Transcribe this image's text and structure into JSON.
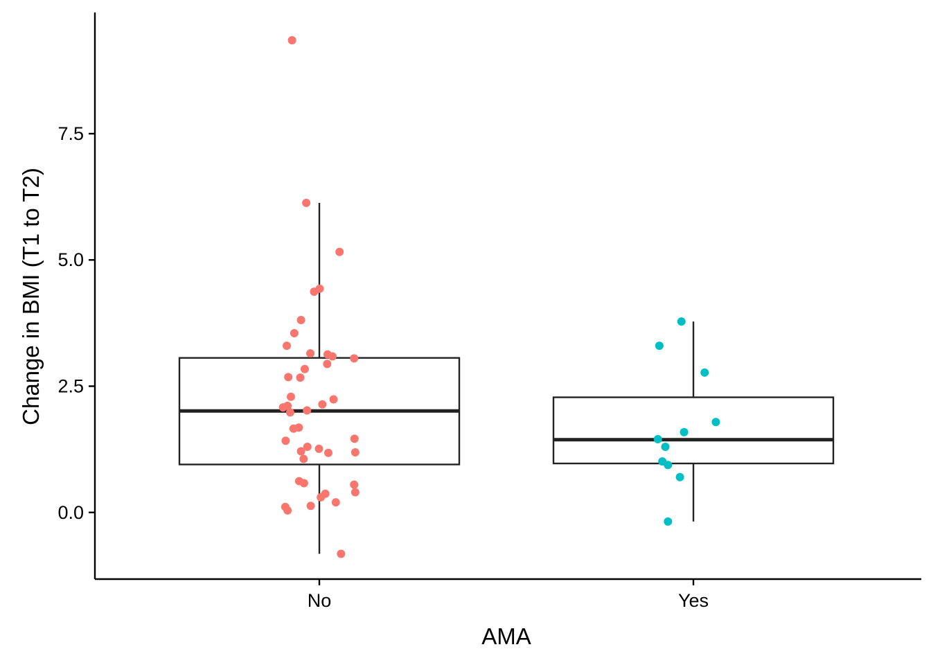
{
  "chart_data": {
    "type": "box",
    "xlabel": "AMA",
    "ylabel": "Change in BMI (T1 to T2)",
    "categories": [
      "No",
      "Yes"
    ],
    "ylim": [
      -1.32,
      9.9
    ],
    "yticks": [
      0.0,
      2.5,
      5.0,
      7.5
    ],
    "ytick_labels": [
      "0.0",
      "2.5",
      "5.0",
      "7.5"
    ],
    "grid": false,
    "legend": "none",
    "colors": {
      "No": "#f8766d",
      "Yes": "#00bfc4",
      "box": "#222222",
      "axis": "#000000"
    },
    "boxes": [
      {
        "category": "No",
        "q1": 0.95,
        "median": 2.01,
        "q3": 3.06,
        "whisker_low": -0.82,
        "whisker_high": 6.13
      },
      {
        "category": "Yes",
        "q1": 0.97,
        "median": 1.44,
        "q3": 2.28,
        "whisker_low": -0.18,
        "whisker_high": 3.78
      }
    ],
    "series": [
      {
        "name": "No",
        "points": [
          {
            "x": -0.073,
            "y": 9.35
          },
          {
            "x": -0.035,
            "y": 6.13
          },
          {
            "x": 0.054,
            "y": 5.16
          },
          {
            "x": 0.001,
            "y": 4.43
          },
          {
            "x": -0.014,
            "y": 4.37
          },
          {
            "x": -0.049,
            "y": 3.81
          },
          {
            "x": -0.067,
            "y": 3.55
          },
          {
            "x": -0.087,
            "y": 3.3
          },
          {
            "x": -0.024,
            "y": 3.15
          },
          {
            "x": 0.022,
            "y": 3.13
          },
          {
            "x": 0.035,
            "y": 3.09
          },
          {
            "x": 0.093,
            "y": 3.05
          },
          {
            "x": 0.021,
            "y": 2.94
          },
          {
            "x": -0.039,
            "y": 2.84
          },
          {
            "x": -0.083,
            "y": 2.68
          },
          {
            "x": -0.051,
            "y": 2.67
          },
          {
            "x": -0.076,
            "y": 2.29
          },
          {
            "x": 0.038,
            "y": 2.24
          },
          {
            "x": 0.008,
            "y": 2.14
          },
          {
            "x": -0.085,
            "y": 2.11
          },
          {
            "x": -0.097,
            "y": 2.08
          },
          {
            "x": -0.033,
            "y": 2.02
          },
          {
            "x": -0.078,
            "y": 1.98
          },
          {
            "x": -0.055,
            "y": 1.68
          },
          {
            "x": -0.069,
            "y": 1.66
          },
          {
            "x": 0.094,
            "y": 1.46
          },
          {
            "x": -0.09,
            "y": 1.42
          },
          {
            "x": -0.032,
            "y": 1.3
          },
          {
            "x": -0.001,
            "y": 1.26
          },
          {
            "x": -0.049,
            "y": 1.21
          },
          {
            "x": 0.024,
            "y": 1.18
          },
          {
            "x": 0.096,
            "y": 1.19
          },
          {
            "x": -0.042,
            "y": 1.06
          },
          {
            "x": -0.054,
            "y": 0.62
          },
          {
            "x": -0.041,
            "y": 0.58
          },
          {
            "x": 0.093,
            "y": 0.55
          },
          {
            "x": 0.096,
            "y": 0.4
          },
          {
            "x": 0.016,
            "y": 0.37
          },
          {
            "x": 0.004,
            "y": 0.3
          },
          {
            "x": 0.044,
            "y": 0.2
          },
          {
            "x": -0.023,
            "y": 0.13
          },
          {
            "x": -0.091,
            "y": 0.11
          },
          {
            "x": -0.085,
            "y": 0.04
          },
          {
            "x": 0.058,
            "y": -0.82
          }
        ]
      },
      {
        "name": "Yes",
        "points": [
          {
            "x": -0.032,
            "y": 3.78
          },
          {
            "x": -0.091,
            "y": 3.3
          },
          {
            "x": 0.03,
            "y": 2.77
          },
          {
            "x": 0.06,
            "y": 1.79
          },
          {
            "x": -0.025,
            "y": 1.59
          },
          {
            "x": -0.095,
            "y": 1.45
          },
          {
            "x": -0.075,
            "y": 1.3
          },
          {
            "x": -0.083,
            "y": 1.01
          },
          {
            "x": -0.068,
            "y": 0.94
          },
          {
            "x": -0.036,
            "y": 0.7
          },
          {
            "x": -0.068,
            "y": -0.18
          }
        ]
      }
    ]
  }
}
